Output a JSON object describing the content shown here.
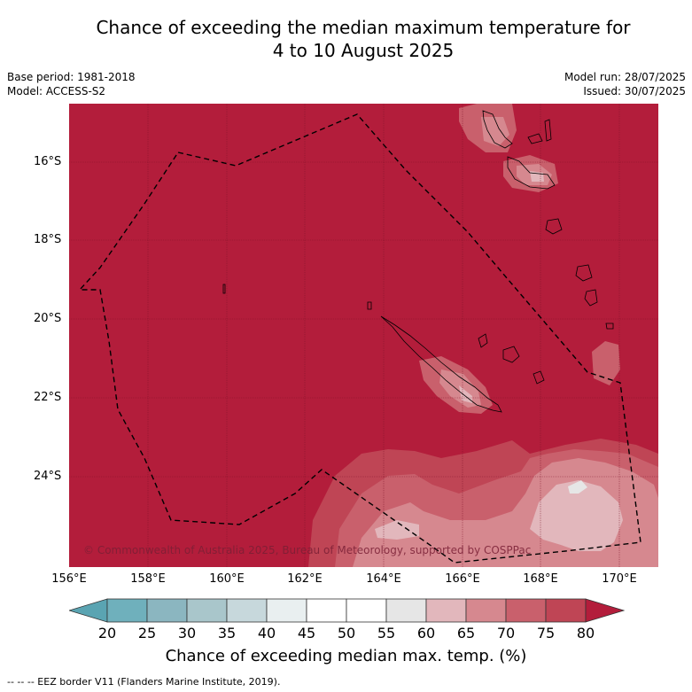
{
  "title": {
    "line1": "Chance of exceeding the median maximum temperature for",
    "line2": "4 to 10 August 2025"
  },
  "meta": {
    "base_period": "Base period: 1981-2018",
    "model": "Model: ACCESS-S2",
    "model_run": "Model run: 28/07/2025",
    "issued": "Issued: 30/07/2025"
  },
  "map": {
    "copyright": "© Commonwealth of Australia 2025, Bureau of Meteorology, supported by COSPPac",
    "lat_labels": [
      "16°S",
      "18°S",
      "20°S",
      "22°S",
      "24°S"
    ],
    "lon_labels": [
      "156°E",
      "158°E",
      "160°E",
      "162°E",
      "164°E",
      "166°E",
      "168°E",
      "170°E"
    ],
    "background_color": "#b31d3b"
  },
  "colorbar": {
    "ticks": [
      "20",
      "25",
      "30",
      "35",
      "40",
      "45",
      "50",
      "55",
      "60",
      "65",
      "70",
      "75",
      "80"
    ],
    "colors": [
      "#5aa4b2",
      "#6fb0bc",
      "#8bb6c0",
      "#a9c6cb",
      "#c7d8dc",
      "#e9eff0",
      "#ffffff",
      "#ffffff",
      "#e6e6e6",
      "#e2b7bc",
      "#d6888f",
      "#c9606c",
      "#bf4555",
      "#b31d3b"
    ],
    "label": "Chance of exceeding median max. temp. (%)"
  },
  "footer": "--  --  -- EEZ border V11 (Flanders Marine Institute, 2019)."
}
